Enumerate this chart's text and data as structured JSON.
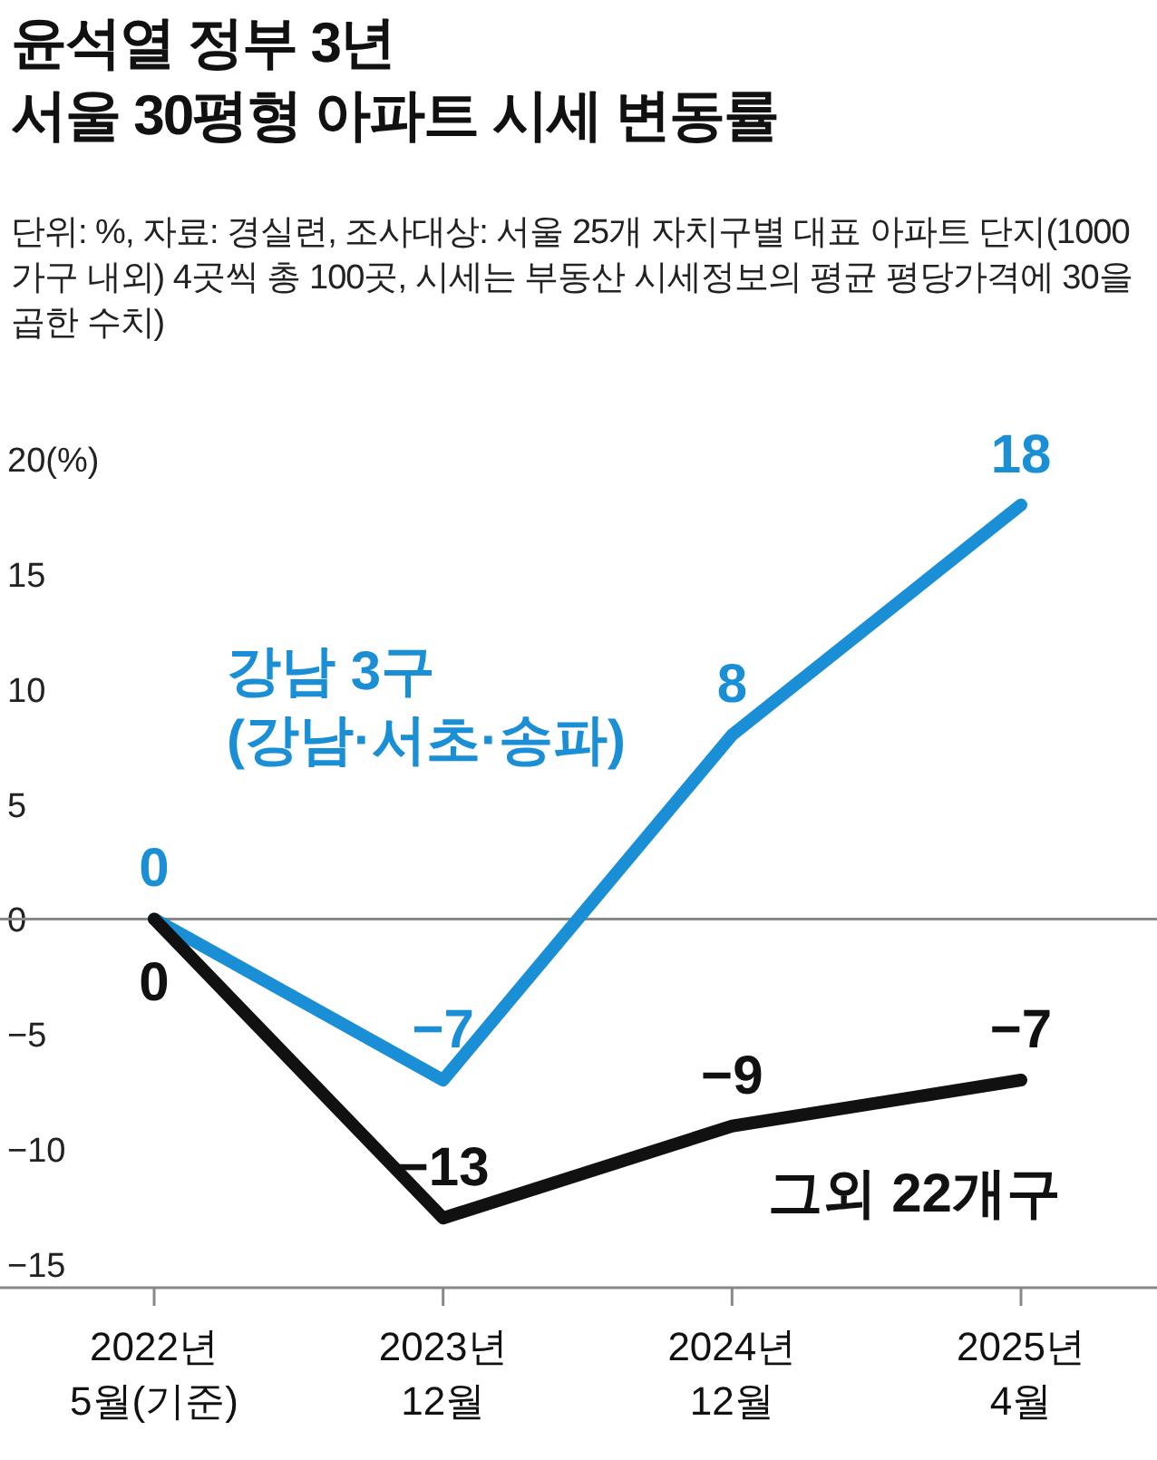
{
  "chart_data": {
    "type": "line",
    "title": "윤석열 정부 3년",
    "subtitle": "서울 30평형 아파트 시세 변동률",
    "annotations": [
      "단위: %, 자료: 경실련, 조사대상: 서울 25개 자치구별 대표 아파트 단지(1000가구 내외) 4곳씩 총 100곳, 시세는 부동산 시세정보의 평균 평당가격에 30을 곱한 수치)"
    ],
    "categories": [
      "2022년\n5월(기준)",
      "2023년\n12월",
      "2024년\n12월",
      "2025년\n4월"
    ],
    "series": [
      {
        "name": "강남 3구 (강남·서초·송파)",
        "color": "#1a8fd6",
        "values": [
          0,
          -7,
          8,
          18
        ]
      },
      {
        "name": "그외 22개구",
        "color": "#111111",
        "values": [
          0,
          -13,
          -9,
          -7
        ]
      }
    ],
    "ylim": [
      -15,
      20
    ],
    "yticks": [
      {
        "value": -15,
        "label": "−15"
      },
      {
        "value": -10,
        "label": "−10"
      },
      {
        "value": -5,
        "label": "−5"
      },
      0,
      5,
      10,
      15,
      {
        "value": 20,
        "label": "20(%)"
      }
    ],
    "ref_lines": [
      {
        "axis": "y",
        "value": 0,
        "color": "#888888"
      }
    ],
    "data_labels": true,
    "grid": false,
    "marker": "none",
    "line_style": "solid"
  }
}
